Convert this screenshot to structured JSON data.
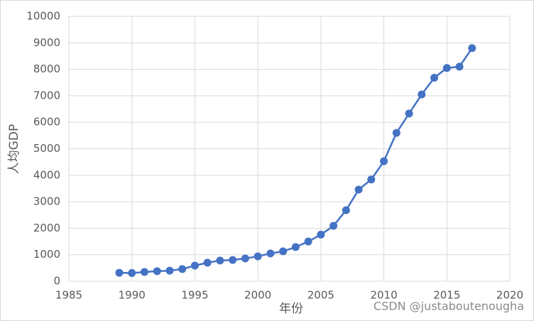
{
  "chart_data": {
    "type": "line",
    "x_label": "年份",
    "y_label": "人均GDP",
    "x": [
      1989,
      1990,
      1991,
      1992,
      1993,
      1994,
      1995,
      1996,
      1997,
      1998,
      1999,
      2000,
      2001,
      2002,
      2003,
      2004,
      2005,
      2006,
      2007,
      2008,
      2009,
      2010,
      2011,
      2012,
      2013,
      2014,
      2015,
      2016,
      2017
    ],
    "series": [
      {
        "color": "#4472c4",
        "values": [
          320,
          310,
          350,
          380,
          400,
          460,
          590,
          700,
          780,
          800,
          860,
          940,
          1050,
          1130,
          1290,
          1500,
          1760,
          2090,
          2680,
          3460,
          3840,
          4530,
          5600,
          6330,
          7050,
          7680,
          8050,
          8100,
          8800
        ]
      }
    ],
    "xlim": [
      1985,
      2020
    ],
    "xticks": [
      1985,
      1990,
      1995,
      2000,
      2005,
      2010,
      2015,
      2020
    ],
    "ylim": [
      0,
      10000
    ],
    "yticks": [
      0,
      1000,
      2000,
      3000,
      4000,
      5000,
      6000,
      7000,
      8000,
      9000,
      10000
    ],
    "grid": true
  },
  "watermark": "CSDN @justaboutenougha"
}
